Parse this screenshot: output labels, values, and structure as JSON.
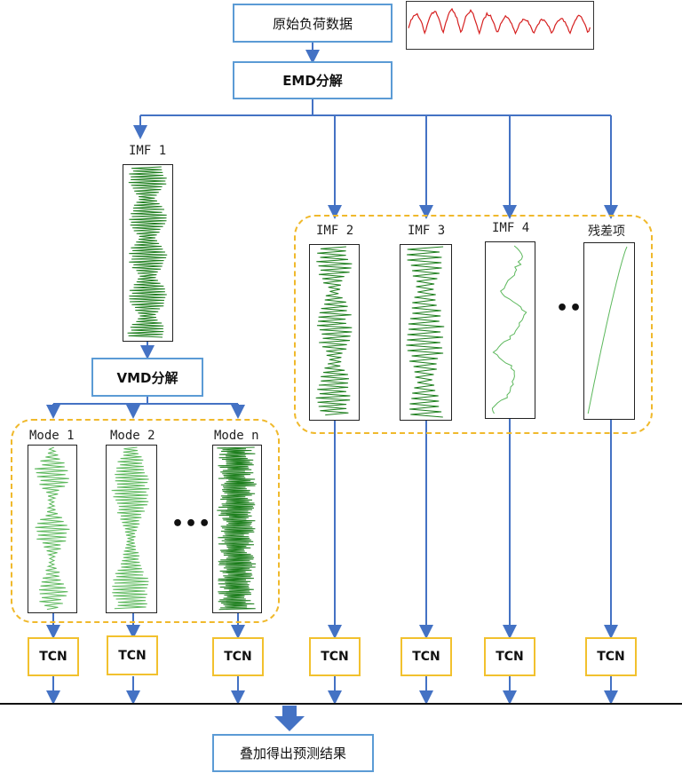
{
  "nodes": {
    "raw_load": "原始负荷数据",
    "emd": "EMD分解",
    "vmd": "VMD分解",
    "result": "叠加得出预测结果"
  },
  "imf_labels": {
    "imf1": "IMF 1",
    "imf2": "IMF 2",
    "imf3": "IMF 3",
    "imf4": "IMF 4",
    "residual": "残差项"
  },
  "mode_labels": {
    "mode1": "Mode 1",
    "mode2": "Mode 2",
    "moden": "Mode n"
  },
  "tcn_label": "TCN",
  "ellipsis": "•••",
  "colors": {
    "arrow": "#4472c4",
    "box_border": "#5b9bd5",
    "tcn_border": "#f2c12e",
    "group_border": "#f0b92c",
    "signal_dark": "#1e7f1e",
    "signal_light": "#5cb85c",
    "raw_signal": "#d62020"
  }
}
